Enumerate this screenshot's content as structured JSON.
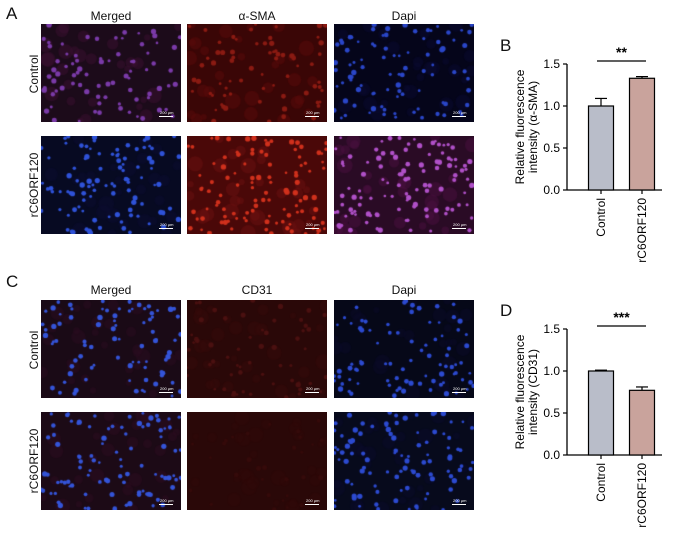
{
  "panels": {
    "a": {
      "letter": "A",
      "columns": [
        "Merged",
        "α-SMA",
        "Dapi"
      ],
      "rows": [
        "Control",
        "rC6ORF120"
      ],
      "scale_label": "200 μm",
      "tiles": [
        {
          "name": "merged-control",
          "bg": "#1c0b1a",
          "dots": "#7a3aa8",
          "glow": "#3a1030",
          "density": 80
        },
        {
          "name": "asma-control",
          "bg": "#3a0606",
          "dots": "#8a1a12",
          "glow": "#5a0a0a",
          "density": 70
        },
        {
          "name": "dapi-control",
          "bg": "#05051a",
          "dots": "#2a46c8",
          "glow": "#0a0a30",
          "density": 90
        },
        {
          "name": "merged-rc6orf120",
          "bg": "#070a22",
          "dots": "#2f52d8",
          "glow": "#0c0c30",
          "density": 100
        },
        {
          "name": "asma-rc6orf120",
          "bg": "#4a0808",
          "dots": "#d0301c",
          "glow": "#6a1010",
          "density": 110
        },
        {
          "name": "dapi-rc6orf120",
          "bg": "#2a0b25",
          "dots": "#b050c8",
          "glow": "#4a1040",
          "density": 110
        }
      ]
    },
    "c": {
      "letter": "C",
      "columns": [
        "Merged",
        "CD31",
        "Dapi"
      ],
      "rows": [
        "Control",
        "rC6ORF120"
      ],
      "scale_label": "200 μm",
      "tiles": [
        {
          "name": "merged-control",
          "bg": "#1a0a16",
          "dots": "#3454d8",
          "glow": "#2a0c20",
          "density": 85
        },
        {
          "name": "cd31-control",
          "bg": "#2a0808",
          "dots": "#4a1010",
          "glow": "#350a0a",
          "density": 60
        },
        {
          "name": "dapi-control",
          "bg": "#060818",
          "dots": "#2c4ad0",
          "glow": "#0a0a28",
          "density": 85
        },
        {
          "name": "merged-rc6orf120",
          "bg": "#1c0a16",
          "dots": "#3454d8",
          "glow": "#2c0c20",
          "density": 95
        },
        {
          "name": "cd31-rc6orf120",
          "bg": "#2a0808",
          "dots": "#350a0a",
          "glow": "#300808",
          "density": 30
        },
        {
          "name": "dapi-rc6orf120",
          "bg": "#070a1c",
          "dots": "#2c4ad0",
          "glow": "#0a0a2a",
          "density": 100
        }
      ]
    }
  },
  "chart_data": [
    {
      "type": "bar",
      "panel_letter": "B",
      "categories": [
        "Control",
        "rC6ORF120"
      ],
      "values": [
        1.0,
        1.33
      ],
      "errors": [
        0.09,
        0.02
      ],
      "colors": [
        "#b9bdc9",
        "#c9a39c"
      ],
      "ylabel_line1": "Relative fluorescence",
      "ylabel_line2": "intensity (α-SMA)",
      "ylim": [
        0,
        1.5
      ],
      "yticks": [
        "0.0",
        "0.5",
        "1.0",
        "1.5"
      ],
      "significance": "**"
    },
    {
      "type": "bar",
      "panel_letter": "D",
      "categories": [
        "Control",
        "rC6ORF120"
      ],
      "values": [
        1.0,
        0.77
      ],
      "errors": [
        0.01,
        0.04
      ],
      "colors": [
        "#b9bdc9",
        "#c9a39c"
      ],
      "ylabel_line1": "Relative fluorescence",
      "ylabel_line2": "intensity (CD31)",
      "ylim": [
        0,
        1.5
      ],
      "yticks": [
        "0.0",
        "0.5",
        "1.0",
        "1.5"
      ],
      "significance": "***"
    }
  ]
}
